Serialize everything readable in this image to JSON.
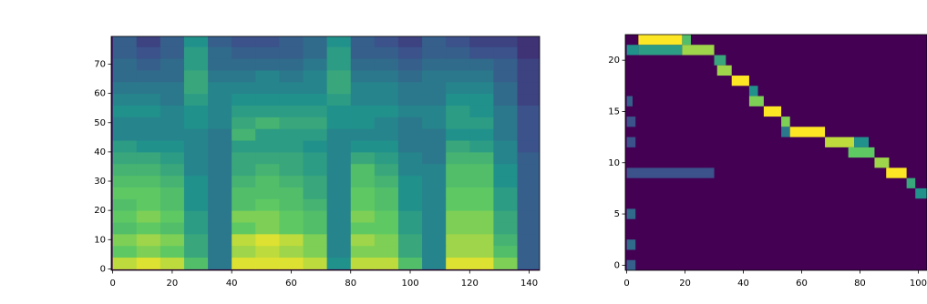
{
  "chart_data": [
    {
      "type": "heatmap",
      "vmin": 0,
      "vmax": 1,
      "xlim": [
        -0.5,
        143.5
      ],
      "ylim": [
        -0.5,
        79.5
      ],
      "xticks": [
        0,
        20,
        40,
        60,
        80,
        100,
        120,
        140
      ],
      "yticks": [
        0,
        10,
        20,
        30,
        40,
        50,
        60,
        70
      ],
      "x_edges": [
        0,
        8,
        16,
        24,
        32,
        40,
        48,
        56,
        64,
        72,
        80,
        88,
        96,
        104,
        112,
        120,
        128,
        136,
        144
      ],
      "y_edges": [
        0,
        4,
        8,
        12,
        16,
        20,
        24,
        28,
        32,
        36,
        40,
        44,
        48,
        52,
        56,
        60,
        64,
        68,
        72,
        76,
        80
      ],
      "z": [
        [
          0.9,
          0.95,
          0.9,
          0.7,
          0.4,
          0.95,
          0.95,
          0.95,
          0.9,
          0.5,
          0.9,
          0.9,
          0.7,
          0.45,
          0.95,
          0.95,
          0.8,
          0.3
        ],
        [
          0.75,
          0.8,
          0.75,
          0.6,
          0.4,
          0.85,
          0.9,
          0.85,
          0.8,
          0.45,
          0.8,
          0.8,
          0.6,
          0.45,
          0.85,
          0.85,
          0.7,
          0.3
        ],
        [
          0.8,
          0.85,
          0.8,
          0.6,
          0.4,
          0.9,
          0.95,
          0.9,
          0.8,
          0.45,
          0.85,
          0.8,
          0.6,
          0.45,
          0.85,
          0.85,
          0.65,
          0.3
        ],
        [
          0.7,
          0.75,
          0.7,
          0.55,
          0.4,
          0.75,
          0.8,
          0.75,
          0.7,
          0.45,
          0.75,
          0.75,
          0.55,
          0.45,
          0.8,
          0.8,
          0.6,
          0.3
        ],
        [
          0.75,
          0.8,
          0.75,
          0.55,
          0.4,
          0.8,
          0.8,
          0.75,
          0.7,
          0.45,
          0.8,
          0.75,
          0.55,
          0.45,
          0.8,
          0.8,
          0.6,
          0.3
        ],
        [
          0.7,
          0.75,
          0.7,
          0.5,
          0.4,
          0.7,
          0.75,
          0.7,
          0.65,
          0.45,
          0.75,
          0.7,
          0.5,
          0.45,
          0.75,
          0.75,
          0.55,
          0.3
        ],
        [
          0.75,
          0.75,
          0.7,
          0.5,
          0.4,
          0.7,
          0.7,
          0.7,
          0.6,
          0.45,
          0.75,
          0.7,
          0.5,
          0.45,
          0.75,
          0.75,
          0.55,
          0.3
        ],
        [
          0.7,
          0.7,
          0.65,
          0.5,
          0.4,
          0.65,
          0.7,
          0.65,
          0.6,
          0.45,
          0.7,
          0.65,
          0.5,
          0.45,
          0.7,
          0.7,
          0.5,
          0.3
        ],
        [
          0.65,
          0.65,
          0.6,
          0.45,
          0.4,
          0.6,
          0.65,
          0.6,
          0.55,
          0.45,
          0.7,
          0.6,
          0.45,
          0.45,
          0.7,
          0.7,
          0.5,
          0.3
        ],
        [
          0.6,
          0.6,
          0.55,
          0.45,
          0.4,
          0.6,
          0.6,
          0.6,
          0.55,
          0.45,
          0.6,
          0.55,
          0.45,
          0.4,
          0.65,
          0.65,
          0.45,
          0.3
        ],
        [
          0.55,
          0.5,
          0.5,
          0.45,
          0.4,
          0.55,
          0.55,
          0.55,
          0.5,
          0.45,
          0.5,
          0.5,
          0.4,
          0.4,
          0.6,
          0.55,
          0.45,
          0.25
        ],
        [
          0.45,
          0.45,
          0.45,
          0.45,
          0.4,
          0.65,
          0.55,
          0.55,
          0.55,
          0.45,
          0.45,
          0.45,
          0.4,
          0.4,
          0.5,
          0.5,
          0.4,
          0.25
        ],
        [
          0.45,
          0.45,
          0.45,
          0.5,
          0.45,
          0.6,
          0.65,
          0.6,
          0.6,
          0.5,
          0.5,
          0.45,
          0.4,
          0.45,
          0.55,
          0.55,
          0.4,
          0.25
        ],
        [
          0.5,
          0.5,
          0.45,
          0.5,
          0.45,
          0.55,
          0.55,
          0.55,
          0.55,
          0.5,
          0.5,
          0.5,
          0.45,
          0.45,
          0.55,
          0.5,
          0.4,
          0.25
        ],
        [
          0.45,
          0.45,
          0.4,
          0.55,
          0.45,
          0.5,
          0.5,
          0.5,
          0.5,
          0.55,
          0.45,
          0.45,
          0.4,
          0.4,
          0.5,
          0.5,
          0.35,
          0.2
        ],
        [
          0.4,
          0.4,
          0.4,
          0.6,
          0.45,
          0.45,
          0.45,
          0.45,
          0.45,
          0.6,
          0.45,
          0.45,
          0.4,
          0.4,
          0.45,
          0.45,
          0.35,
          0.2
        ],
        [
          0.35,
          0.35,
          0.35,
          0.6,
          0.4,
          0.4,
          0.45,
          0.4,
          0.45,
          0.6,
          0.4,
          0.4,
          0.35,
          0.4,
          0.4,
          0.4,
          0.3,
          0.2
        ],
        [
          0.35,
          0.3,
          0.35,
          0.55,
          0.35,
          0.35,
          0.35,
          0.35,
          0.4,
          0.55,
          0.35,
          0.35,
          0.3,
          0.35,
          0.35,
          0.35,
          0.3,
          0.2
        ],
        [
          0.3,
          0.25,
          0.3,
          0.55,
          0.35,
          0.3,
          0.3,
          0.3,
          0.35,
          0.55,
          0.3,
          0.3,
          0.25,
          0.3,
          0.3,
          0.25,
          0.25,
          0.15
        ],
        [
          0.3,
          0.2,
          0.3,
          0.5,
          0.3,
          0.25,
          0.25,
          0.3,
          0.35,
          0.5,
          0.3,
          0.25,
          0.2,
          0.3,
          0.25,
          0.2,
          0.2,
          0.15
        ]
      ]
    },
    {
      "type": "alignment",
      "vmin": 0,
      "vmax": 1,
      "xlim": [
        -0.5,
        103
      ],
      "ylim": [
        -0.5,
        22.5
      ],
      "xticks": [
        0,
        20,
        40,
        60,
        80,
        100
      ],
      "yticks": [
        0,
        5,
        10,
        15,
        20
      ],
      "segments": [
        {
          "y": 22,
          "x0": 4,
          "x1": 19,
          "value": 1
        },
        {
          "y": 22,
          "x0": 19,
          "x1": 22,
          "value": 0.7
        },
        {
          "y": 21,
          "x0": 0,
          "x1": 4,
          "value": 0.5
        },
        {
          "y": 21,
          "x0": 4,
          "x1": 19,
          "value": 0.55
        },
        {
          "y": 21,
          "x0": 19,
          "x1": 30,
          "value": 0.85
        },
        {
          "y": 20,
          "x0": 30,
          "x1": 34,
          "value": 0.6
        },
        {
          "y": 19,
          "x0": 31,
          "x1": 36,
          "value": 0.85
        },
        {
          "y": 18,
          "x0": 36,
          "x1": 42,
          "value": 1
        },
        {
          "y": 17,
          "x0": 42,
          "x1": 45,
          "value": 0.5
        },
        {
          "y": 16,
          "x0": 0,
          "x1": 2,
          "value": 0.3
        },
        {
          "y": 16,
          "x0": 42,
          "x1": 47,
          "value": 0.8
        },
        {
          "y": 15,
          "x0": 47,
          "x1": 53,
          "value": 1
        },
        {
          "y": 14,
          "x0": 0,
          "x1": 3,
          "value": 0.25
        },
        {
          "y": 14,
          "x0": 53,
          "x1": 56,
          "value": 0.8
        },
        {
          "y": 13,
          "x0": 53,
          "x1": 56,
          "value": 0.4
        },
        {
          "y": 13,
          "x0": 56,
          "x1": 68,
          "value": 1
        },
        {
          "y": 12,
          "x0": 0,
          "x1": 3,
          "value": 0.25
        },
        {
          "y": 12,
          "x0": 68,
          "x1": 78,
          "value": 0.9
        },
        {
          "y": 12,
          "x0": 78,
          "x1": 83,
          "value": 0.5
        },
        {
          "y": 11,
          "x0": 76,
          "x1": 85,
          "value": 0.75
        },
        {
          "y": 10,
          "x0": 85,
          "x1": 90,
          "value": 0.85
        },
        {
          "y": 9,
          "x0": 0,
          "x1": 30,
          "value": 0.25
        },
        {
          "y": 9,
          "x0": 89,
          "x1": 96,
          "value": 1
        },
        {
          "y": 8,
          "x0": 96,
          "x1": 99,
          "value": 0.6
        },
        {
          "y": 7,
          "x0": 99,
          "x1": 103,
          "value": 0.5
        },
        {
          "y": 5,
          "x0": 0,
          "x1": 3,
          "value": 0.35
        },
        {
          "y": 2,
          "x0": 0,
          "x1": 3,
          "value": 0.35
        },
        {
          "y": 0,
          "x0": 0,
          "x1": 3,
          "value": 0.3
        }
      ]
    }
  ]
}
